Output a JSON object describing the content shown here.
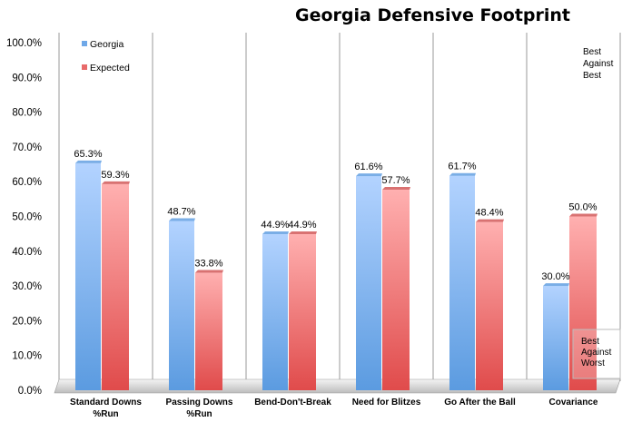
{
  "chart_data": {
    "type": "bar",
    "title": "Georgia Defensive Footprint",
    "xlabel": "",
    "ylabel": "",
    "ylim": [
      0,
      100
    ],
    "y_ticks": [
      "0.0%",
      "10.0%",
      "20.0%",
      "30.0%",
      "40.0%",
      "50.0%",
      "60.0%",
      "70.0%",
      "80.0%",
      "90.0%",
      "100.0%"
    ],
    "grid": "vertical separators between categories",
    "legend_position": "top-left",
    "categories": [
      [
        "Standard Downs",
        "%Run"
      ],
      [
        "Passing Downs",
        "%Run"
      ],
      [
        "Bend-Don't-Break"
      ],
      [
        "Need for Blitzes"
      ],
      [
        "Go After the Ball"
      ],
      [
        "Covariance"
      ]
    ],
    "series": [
      {
        "name": "Georgia",
        "color": "#6fa8e8",
        "values": [
          65.3,
          48.7,
          44.9,
          61.6,
          61.7,
          30.0
        ],
        "labels": [
          "65.3%",
          "48.7%",
          "44.9%",
          "61.6%",
          "61.7%",
          "30.0%"
        ]
      },
      {
        "name": "Expected",
        "color": "#e86a6a",
        "values": [
          59.3,
          33.8,
          44.9,
          57.7,
          48.4,
          50.0
        ],
        "labels": [
          "59.3%",
          "33.8%",
          "44.9%",
          "57.7%",
          "48.4%",
          "50.0%"
        ]
      }
    ],
    "annotations": {
      "top": [
        "Best",
        "Against",
        "Best"
      ],
      "bottom": [
        "Best",
        "Against",
        "Worst"
      ]
    }
  }
}
